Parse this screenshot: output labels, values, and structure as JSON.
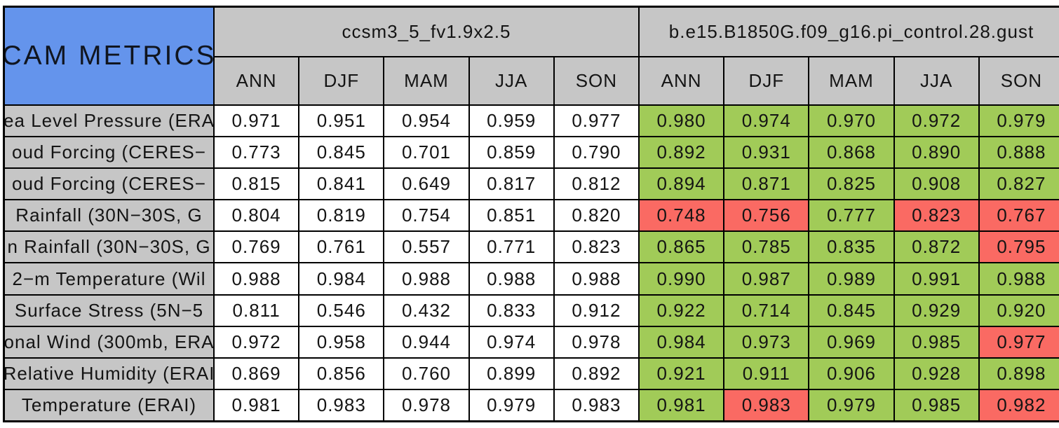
{
  "chart_data": {
    "type": "table",
    "title": "CAM METRICS",
    "column_groups": [
      "ccsm3_5_fv1.9x2.5",
      "b.e15.B1850G.f09_g16.pi_control.28.gust"
    ],
    "seasons": [
      "ANN",
      "DJF",
      "MAM",
      "JJA",
      "SON"
    ],
    "rows": [
      {
        "label": "ea Level Pressure (ERA",
        "model1": [
          "0.971",
          "0.951",
          "0.954",
          "0.959",
          "0.977"
        ],
        "model2": [
          "0.980",
          "0.974",
          "0.970",
          "0.972",
          "0.979"
        ],
        "model2_status": [
          "green",
          "green",
          "green",
          "green",
          "green"
        ]
      },
      {
        "label": "oud Forcing (CERES−",
        "model1": [
          "0.773",
          "0.845",
          "0.701",
          "0.859",
          "0.790"
        ],
        "model2": [
          "0.892",
          "0.931",
          "0.868",
          "0.890",
          "0.888"
        ],
        "model2_status": [
          "green",
          "green",
          "green",
          "green",
          "green"
        ]
      },
      {
        "label": "oud Forcing (CERES−",
        "model1": [
          "0.815",
          "0.841",
          "0.649",
          "0.817",
          "0.812"
        ],
        "model2": [
          "0.894",
          "0.871",
          "0.825",
          "0.908",
          "0.827"
        ],
        "model2_status": [
          "green",
          "green",
          "green",
          "green",
          "green"
        ]
      },
      {
        "label": "Rainfall (30N−30S, G",
        "model1": [
          "0.804",
          "0.819",
          "0.754",
          "0.851",
          "0.820"
        ],
        "model2": [
          "0.748",
          "0.756",
          "0.777",
          "0.823",
          "0.767"
        ],
        "model2_status": [
          "red",
          "red",
          "green",
          "red",
          "red"
        ]
      },
      {
        "label": "n Rainfall (30N−30S, G",
        "model1": [
          "0.769",
          "0.761",
          "0.557",
          "0.771",
          "0.823"
        ],
        "model2": [
          "0.865",
          "0.785",
          "0.835",
          "0.872",
          "0.795"
        ],
        "model2_status": [
          "green",
          "green",
          "green",
          "green",
          "red"
        ]
      },
      {
        "label": "2−m Temperature (Wil",
        "model1": [
          "0.988",
          "0.984",
          "0.988",
          "0.988",
          "0.988"
        ],
        "model2": [
          "0.990",
          "0.987",
          "0.989",
          "0.991",
          "0.988"
        ],
        "model2_status": [
          "green",
          "green",
          "green",
          "green",
          "green"
        ]
      },
      {
        "label": "Surface Stress (5N−5",
        "model1": [
          "0.811",
          "0.546",
          "0.432",
          "0.833",
          "0.912"
        ],
        "model2": [
          "0.922",
          "0.714",
          "0.845",
          "0.929",
          "0.920"
        ],
        "model2_status": [
          "green",
          "green",
          "green",
          "green",
          "green"
        ]
      },
      {
        "label": "onal Wind (300mb, ERA",
        "model1": [
          "0.972",
          "0.958",
          "0.944",
          "0.974",
          "0.978"
        ],
        "model2": [
          "0.984",
          "0.973",
          "0.969",
          "0.985",
          "0.977"
        ],
        "model2_status": [
          "green",
          "green",
          "green",
          "green",
          "red"
        ]
      },
      {
        "label": "Relative Humidity (ERAI",
        "model1": [
          "0.869",
          "0.856",
          "0.760",
          "0.899",
          "0.892"
        ],
        "model2": [
          "0.921",
          "0.911",
          "0.906",
          "0.928",
          "0.898"
        ],
        "model2_status": [
          "green",
          "green",
          "green",
          "green",
          "green"
        ]
      },
      {
        "label": "Temperature (ERAI)",
        "model1": [
          "0.981",
          "0.983",
          "0.978",
          "0.979",
          "0.983"
        ],
        "model2": [
          "0.981",
          "0.983",
          "0.979",
          "0.985",
          "0.982"
        ],
        "model2_status": [
          "green",
          "red",
          "green",
          "green",
          "red"
        ]
      }
    ]
  },
  "colors": {
    "title_bg": "#6494EC",
    "header_bg": "#C6C6C6",
    "label_bg": "#C6C6C6",
    "value_bg": "#FFFFFF",
    "green": "#A1CB58",
    "red": "#FA6A63",
    "border": "#000000"
  }
}
